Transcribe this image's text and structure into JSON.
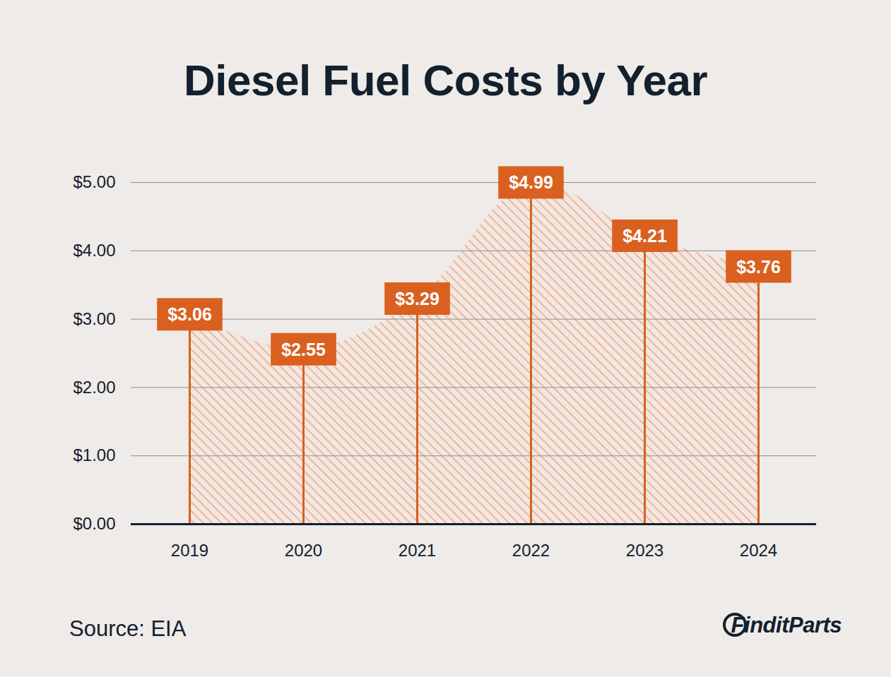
{
  "chart_data": {
    "type": "area",
    "title": "Diesel Fuel Costs by Year",
    "categories": [
      "2019",
      "2020",
      "2021",
      "2022",
      "2023",
      "2024"
    ],
    "values": [
      3.06,
      2.55,
      3.29,
      4.99,
      4.21,
      3.76
    ],
    "value_labels": [
      "$3.06",
      "$2.55",
      "$3.29",
      "$4.99",
      "$4.21",
      "$3.76"
    ],
    "color": "#d9601f",
    "ylim": [
      0,
      5
    ],
    "yticks": [
      {
        "value": 0,
        "label": "$0.00"
      },
      {
        "value": 1,
        "label": "$1.00"
      },
      {
        "value": 2,
        "label": "$2.00"
      },
      {
        "value": 3,
        "label": "$3.00"
      },
      {
        "value": 4,
        "label": "$4.00"
      },
      {
        "value": 5,
        "label": "$5.00"
      }
    ],
    "grid": true,
    "data_labels": true,
    "source": "Source: EIA",
    "logo": "FinditParts"
  }
}
